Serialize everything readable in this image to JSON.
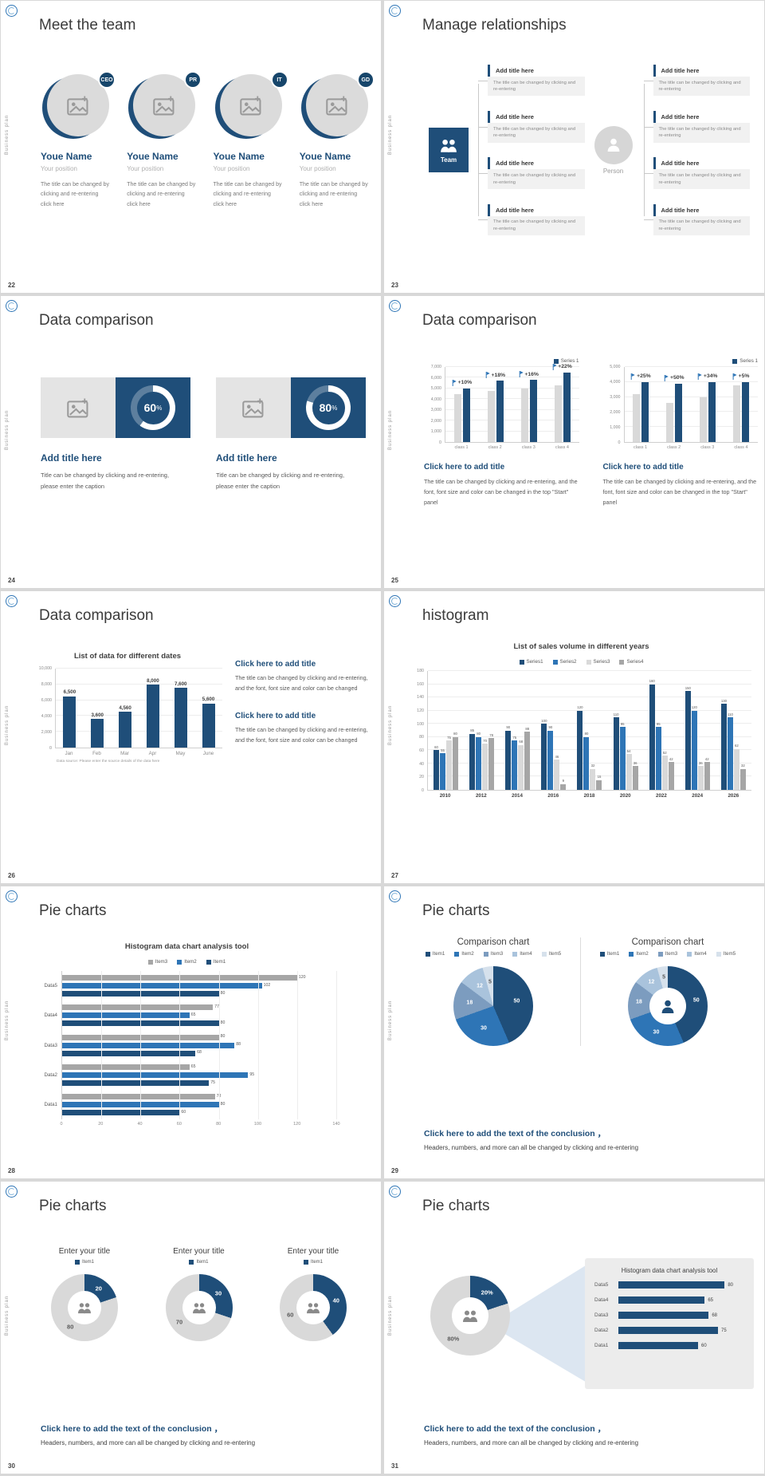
{
  "colors": {
    "accent": "#1F4E79",
    "accent2": "#2E75B6",
    "light_gray": "#D9D9D9",
    "mid_gray": "#A6A6A6"
  },
  "common": {
    "sidebar_label": "Business plan",
    "logo_icon": "brand-emblem-icon"
  },
  "s22": {
    "number": "22",
    "title": "Meet the team",
    "members": [
      {
        "badge": "CEO",
        "name": "Youe Name",
        "position": "Your position",
        "desc": "The title can be changed by clicking and re-entering click here"
      },
      {
        "badge": "PR",
        "name": "Youe Name",
        "position": "Your position",
        "desc": "The title can be changed by clicking and re-entering click here"
      },
      {
        "badge": "IT",
        "name": "Youe Name",
        "position": "Your position",
        "desc": "The title can be changed by clicking and re-entering click here"
      },
      {
        "badge": "GD",
        "name": "Youe Name",
        "position": "Your position",
        "desc": "The title can be changed by clicking and re-entering click here"
      }
    ]
  },
  "s23": {
    "number": "23",
    "title": "Manage relationships",
    "groups": [
      {
        "label": "Team",
        "icon": "people-icon",
        "boxes": [
          {
            "title": "Add title here",
            "body": "The title can be changed by clicking and re-entering"
          },
          {
            "title": "Add title here",
            "body": "The title can be changed by clicking and re-entering"
          },
          {
            "title": "Add title here",
            "body": "The title can be changed by clicking and re-entering"
          },
          {
            "title": "Add title here",
            "body": "The title can be changed by clicking and re-entering"
          }
        ]
      },
      {
        "label": "Person",
        "icon": "person-icon",
        "boxes": [
          {
            "title": "Add title here",
            "body": "The title can be changed by clicking and re-entering"
          },
          {
            "title": "Add title here",
            "body": "The title can be changed by clicking and re-entering"
          },
          {
            "title": "Add title here",
            "body": "The title can be changed by clicking and re-entering"
          },
          {
            "title": "Add title here",
            "body": "The title can be changed by clicking and re-entering"
          }
        ]
      }
    ]
  },
  "s24": {
    "number": "24",
    "title": "Data comparison",
    "cards": [
      {
        "percent": "60",
        "unit": "%",
        "title": "Add title here",
        "caption": "Title can be changed by clicking and re-entering, please enter the caption"
      },
      {
        "percent": "80",
        "unit": "%",
        "title": "Add title here",
        "caption": "Title can be changed by clicking and re-entering, please enter the caption"
      }
    ]
  },
  "s25": {
    "number": "25",
    "title": "Data comparison",
    "charts": [
      {
        "type": "bar",
        "legend": "Series 1",
        "yticks": [
          "7,000",
          "6,000",
          "5,000",
          "4,000",
          "3,000",
          "2,000",
          "1,000",
          "0"
        ],
        "ymax": 7000,
        "categories": [
          "class 1",
          "class 2",
          "class 3",
          "class 4"
        ],
        "series_gray": [
          4500,
          4800,
          5000,
          5300
        ],
        "series_blue": [
          5000,
          5700,
          5800,
          6500
        ],
        "annotations": [
          "+10%",
          "+18%",
          "+16%",
          "+22%"
        ],
        "link_title": "Click here to add title",
        "caption": "The title can be changed by clicking and re-entering, and the font, font size and color can be changed in the top \"Start\" panel"
      },
      {
        "type": "bar",
        "legend": "Series 1",
        "yticks": [
          "5,000",
          "4,000",
          "3,000",
          "2,000",
          "1,000",
          "0"
        ],
        "ymax": 5000,
        "categories": [
          "class 1",
          "class 2",
          "class 3",
          "class 4"
        ],
        "series_gray": [
          3200,
          2600,
          3000,
          3800
        ],
        "series_blue": [
          4000,
          3900,
          4000,
          4000
        ],
        "annotations": [
          "+25%",
          "+50%",
          "+34%",
          "+5%"
        ],
        "link_title": "Click here to add title",
        "caption": "The title can be changed by clicking and re-entering, and the font, font size and color can be changed in the top \"Start\" panel"
      }
    ]
  },
  "s26": {
    "number": "26",
    "title": "Data comparison",
    "chart": {
      "type": "bar",
      "title": "List of data for different dates",
      "categories": [
        "Jan",
        "Feb",
        "Mar",
        "Apr",
        "May",
        "June"
      ],
      "values": [
        6500,
        3600,
        4560,
        8000,
        7600,
        5600
      ],
      "value_labels": [
        "6,500",
        "3,600",
        "4,560",
        "8,000",
        "7,600",
        "5,600"
      ],
      "yticks": [
        "10,000",
        "8,000",
        "6,000",
        "4,000",
        "2,000",
        "0"
      ],
      "ymax": 10000,
      "source": "Data source: Please enter the source details of the data here"
    },
    "blocks": [
      {
        "title": "Click here to add title",
        "body": "The title can be changed by clicking and re-entering, and the font, font size and color can be changed"
      },
      {
        "title": "Click here to add title",
        "body": "The title can be changed by clicking and re-entering, and the font, font size and color can be changed"
      }
    ]
  },
  "s27": {
    "number": "27",
    "title": "histogram",
    "chart": {
      "type": "bar",
      "title": "List of sales volume in different years",
      "legend": [
        "Series1",
        "Series2",
        "Series3",
        "Series4"
      ],
      "colors": [
        "#1F4E79",
        "#2E75B6",
        "#D9D9D9",
        "#A6A6A6"
      ],
      "years": [
        "2010",
        "2012",
        "2014",
        "2016",
        "2018",
        "2020",
        "2022",
        "2024",
        "2026"
      ],
      "series": [
        {
          "name": "Series1",
          "values": [
            60,
            85,
            90,
            100,
            120,
            110,
            160,
            150,
            130
          ]
        },
        {
          "name": "Series2",
          "values": [
            55,
            80,
            75,
            90,
            80,
            95,
            95,
            120,
            110
          ]
        },
        {
          "name": "Series3",
          "values": [
            75,
            70,
            68,
            46,
            32,
            54,
            52,
            36,
            62
          ]
        },
        {
          "name": "Series4",
          "values": [
            80,
            78,
            88,
            9,
            15,
            36,
            42,
            42,
            32
          ]
        }
      ],
      "ymax": 180,
      "yticks": [
        "180",
        "160",
        "140",
        "120",
        "100",
        "80",
        "60",
        "40",
        "20",
        "0"
      ]
    }
  },
  "s28": {
    "number": "28",
    "title": "Pie charts",
    "chart": {
      "type": "bar",
      "title": "Histogram data chart analysis tool",
      "legend": [
        "Item3",
        "Item2",
        "Item1"
      ],
      "legend_colors": [
        "#A6A6A6",
        "#2E75B6",
        "#1F4E79"
      ],
      "categories": [
        "Data5",
        "Data4",
        "Data3",
        "Data2",
        "Data1"
      ],
      "series": [
        {
          "name": "Item3",
          "color": "#A6A6A6",
          "values": [
            120,
            77,
            80,
            65,
            78
          ]
        },
        {
          "name": "Item2",
          "color": "#2E75B6",
          "values": [
            102,
            65,
            88,
            95,
            80
          ]
        },
        {
          "name": "Item1",
          "color": "#1F4E79",
          "values": [
            80,
            80,
            68,
            75,
            60
          ]
        }
      ],
      "xticks": [
        0,
        20,
        40,
        60,
        80,
        100,
        120,
        140
      ],
      "xmax": 140
    }
  },
  "s29": {
    "number": "29",
    "title": "Pie charts",
    "colors": [
      "#1F4E79",
      "#2E75B6",
      "#7C9CBF",
      "#A9C3DC",
      "#D6E1EC"
    ],
    "charts": [
      {
        "type": "pie",
        "title": "Comparison chart",
        "legend": [
          "Item1",
          "Item2",
          "Item3",
          "Item4",
          "Item5"
        ],
        "values": [
          50,
          30,
          18,
          12,
          5
        ]
      },
      {
        "type": "donut",
        "title": "Comparison chart",
        "legend": [
          "Item1",
          "Item2",
          "Item3",
          "Item4",
          "Item5"
        ],
        "values": [
          50,
          30,
          18,
          12,
          5
        ]
      }
    ],
    "conclusion_title": "Click here to add the text of the conclusion ，",
    "conclusion_body": "Headers, numbers, and more can all be changed by clicking and re-entering"
  },
  "s30": {
    "number": "30",
    "title": "Pie charts",
    "donuts": [
      {
        "title": "Enter your title",
        "legend": "Item1",
        "value": 20,
        "rest": 80
      },
      {
        "title": "Enter your title",
        "legend": "Item1",
        "value": 30,
        "rest": 70
      },
      {
        "title": "Enter your title",
        "legend": "Item1",
        "value": 40,
        "rest": 60
      }
    ],
    "conclusion_title": "Click here to add the text of the conclusion ，",
    "conclusion_body": "Headers, numbers, and more can all be changed by clicking and re-entering"
  },
  "s31": {
    "number": "31",
    "title": "Pie charts",
    "donut": {
      "value": 20,
      "value_label": "20%",
      "rest_label": "80%"
    },
    "panel": {
      "title": "Histogram data chart analysis tool",
      "categories": [
        "Data5",
        "Data4",
        "Data3",
        "Data2",
        "Data1"
      ],
      "values": [
        80,
        65,
        68,
        75,
        60
      ]
    },
    "conclusion_title": "Click here to add the text of the conclusion ，",
    "conclusion_body": "Headers, numbers, and more can all be changed by clicking and re-entering"
  }
}
